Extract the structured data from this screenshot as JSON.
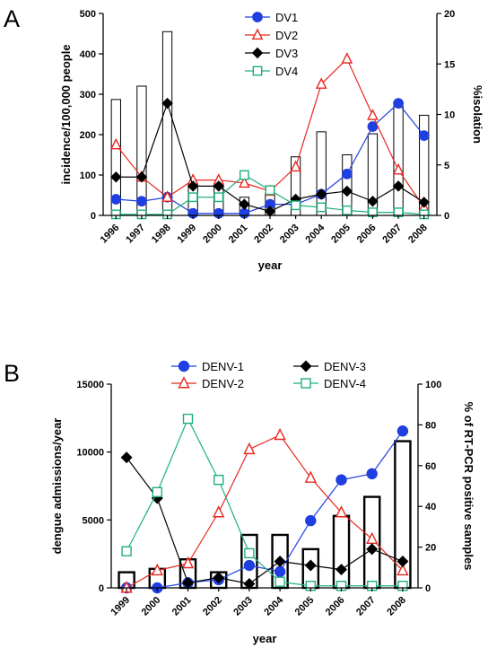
{
  "chart_data": [
    {
      "panel": "A",
      "type": "bar",
      "xlabel": "year",
      "ylabel": "incidence/100,000 people",
      "y2label": "%isolation",
      "ylim": [
        0,
        500
      ],
      "y2lim": [
        0,
        20
      ],
      "yticks": [
        "0",
        "100",
        "200",
        "300",
        "400",
        "500"
      ],
      "y2ticks": [
        "0",
        "5",
        "10",
        "15",
        "20"
      ],
      "categories": [
        "1996",
        "1997",
        "1998",
        "1999",
        "2000",
        "2001",
        "2002",
        "2003",
        "2004",
        "2005",
        "2006",
        "2007",
        "2008"
      ],
      "bars": {
        "axis": "left",
        "values": [
          287,
          320,
          455,
          75,
          75,
          45,
          55,
          145,
          207,
          150,
          202,
          270,
          248
        ]
      },
      "series": [
        {
          "name": "DV1",
          "axis": "right",
          "marker": "circle",
          "color": "#1f3fe0",
          "filled": true,
          "values": [
            1.6,
            1.4,
            1.8,
            0.2,
            0.2,
            0.2,
            1.1,
            1.1,
            2.1,
            4.1,
            8.8,
            11.1,
            7.9
          ]
        },
        {
          "name": "DV2",
          "axis": "right",
          "marker": "triangle",
          "color": "#e8271f",
          "filled": false,
          "values": [
            7.0,
            3.8,
            1.8,
            3.5,
            3.5,
            3.2,
            2.4,
            4.8,
            13.0,
            15.5,
            9.9,
            4.5,
            0.8
          ]
        },
        {
          "name": "DV3",
          "axis": "right",
          "marker": "diamond",
          "color": "#000000",
          "filled": true,
          "values": [
            3.8,
            3.8,
            11.1,
            2.9,
            2.9,
            1.1,
            0.4,
            1.6,
            2.1,
            2.4,
            1.4,
            2.9,
            1.3
          ]
        },
        {
          "name": "DV4",
          "axis": "right",
          "marker": "square",
          "color": "#1fb07a",
          "filled": false,
          "values": [
            0.1,
            0.1,
            0.1,
            1.8,
            1.8,
            4.0,
            2.5,
            1.0,
            0.8,
            0.5,
            0.3,
            0.3,
            0.1
          ]
        }
      ],
      "legend_position": "top-center"
    },
    {
      "panel": "B",
      "type": "bar",
      "xlabel": "year",
      "ylabel": "dengue admissions/year",
      "y2label": "% of RT-PCR positive samples",
      "ylim": [
        0,
        15000
      ],
      "y2lim": [
        0,
        100
      ],
      "yticks": [
        "0",
        "5000",
        "10000",
        "15000"
      ],
      "y2ticks": [
        "0",
        "20",
        "40",
        "60",
        "80",
        "100"
      ],
      "categories": [
        "1999",
        "2000",
        "2001",
        "2002",
        "2003",
        "2004",
        "2005",
        "2006",
        "2007",
        "2008"
      ],
      "bars": {
        "axis": "left",
        "values": [
          1150,
          1400,
          2100,
          1150,
          3900,
          3900,
          2850,
          5300,
          6700,
          10800
        ]
      },
      "series": [
        {
          "name": "DENV-1",
          "axis": "right",
          "marker": "circle",
          "color": "#1f3fe0",
          "filled": true,
          "values": [
            0,
            0,
            2.5,
            4,
            11,
            8,
            33,
            53,
            56,
            77
          ]
        },
        {
          "name": "DENV-2",
          "axis": "right",
          "marker": "triangle",
          "color": "#e8271f",
          "filled": false,
          "values": [
            0,
            8.5,
            12,
            37,
            68,
            75,
            54,
            37,
            24,
            8.5
          ]
        },
        {
          "name": "DENV-3",
          "axis": "right",
          "marker": "diamond",
          "color": "#000000",
          "filled": true,
          "values": [
            64,
            44,
            2.5,
            5,
            2,
            13,
            11,
            9,
            19,
            13
          ]
        },
        {
          "name": "DENV-4",
          "axis": "right",
          "marker": "square",
          "color": "#1fb07a",
          "filled": false,
          "values": [
            18,
            47,
            83,
            53,
            17,
            3,
            1,
            1,
            1,
            1
          ]
        }
      ],
      "legend_position": "top-center"
    }
  ]
}
